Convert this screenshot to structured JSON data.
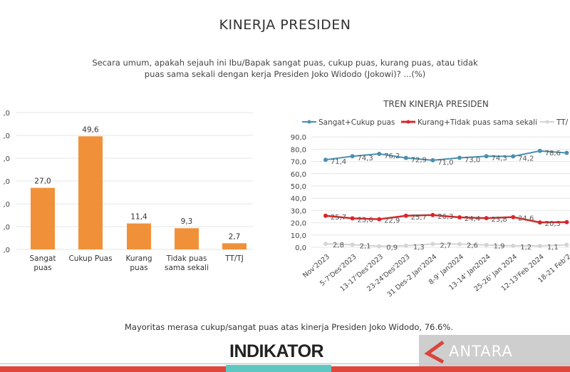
{
  "header": {
    "title": "KINERJA PRESIDEN",
    "question": "Secara umum, apakah sejauh ini Ibu/Bapak sangat puas, cukup puas, kurang puas, atau tidak puas sama sekali dengan kerja Presiden Joko Widodo (Jokowi)? ...(%)"
  },
  "footer": {
    "note": "Mayoritas merasa cukup/sangat puas atas kinerja Presiden Joko Widodo, 76.6%.",
    "logo": "INDIKATOR",
    "watermark": "ANTARA"
  },
  "chart_data": [
    {
      "type": "bar",
      "title": "",
      "categories": [
        "Sangat puas",
        "Cukup Puas",
        "Kurang puas",
        "Tidak puas sama sekali",
        "TT/TJ"
      ],
      "values": [
        27.0,
        49.6,
        11.4,
        9.3,
        2.7
      ],
      "value_labels": [
        "27,0",
        "49,6",
        "11,4",
        "9,3",
        "2,7"
      ],
      "ylim": [
        0,
        60
      ],
      "yticks": [
        ",0",
        ",0",
        ",0",
        ",0",
        ",0",
        ",0",
        ",0"
      ],
      "color": "#f0913a",
      "grid": true
    },
    {
      "type": "line",
      "title": "TREN KINERJA PRESIDEN",
      "legend": "top",
      "categories": [
        "Nov'2023",
        "5-7'Des'2023",
        "13-17'Des'2023",
        "23-24'Des'2023",
        "31 Des-2 Jan'2024",
        "8-9' Jan2024",
        "13-14' Jan2024",
        "25-26' Jan 2024",
        "12-13'Feb 2024",
        "18-21 Feb'2"
      ],
      "ylim": [
        0,
        90
      ],
      "yticks": [
        "0,0",
        "10,0",
        "20,0",
        "30,0",
        "40,0",
        "50,0",
        "60,0",
        "70,0",
        "80,0",
        "90,0"
      ],
      "grid": true,
      "series": [
        {
          "name": "Sangat+Cukup puas",
          "color": "#4a8fae",
          "values": [
            71.4,
            74.3,
            76.2,
            72.9,
            71.0,
            73.0,
            74.3,
            74.2,
            78.6,
            77.0
          ],
          "labels": [
            "71,4",
            "74,3",
            "76,2",
            "72,9",
            "71,0",
            "73,0",
            "74,3",
            "74,2",
            "78,6",
            ""
          ]
        },
        {
          "name": "Kurang+Tidak puas sama sekali",
          "color": "#d6282b",
          "values": [
            25.7,
            23.6,
            22.9,
            25.7,
            26.3,
            24.4,
            23.8,
            24.6,
            20.3,
            20.5
          ],
          "labels": [
            "25,7",
            "23,6",
            "22,9",
            "25,7",
            "26,3",
            "24,4",
            "23,8",
            "24,6",
            "20,3",
            ""
          ]
        },
        {
          "name": "TT/",
          "color": "#d4d4d4",
          "values": [
            2.8,
            2.1,
            0.9,
            1.3,
            2.7,
            2.6,
            1.9,
            1.2,
            1.1,
            2.0
          ],
          "labels": [
            "2,8",
            "2,1",
            "0,9",
            "1,3",
            "2,7",
            "2,6",
            "1,9",
            "1,2",
            "1,1",
            ""
          ]
        }
      ]
    }
  ]
}
